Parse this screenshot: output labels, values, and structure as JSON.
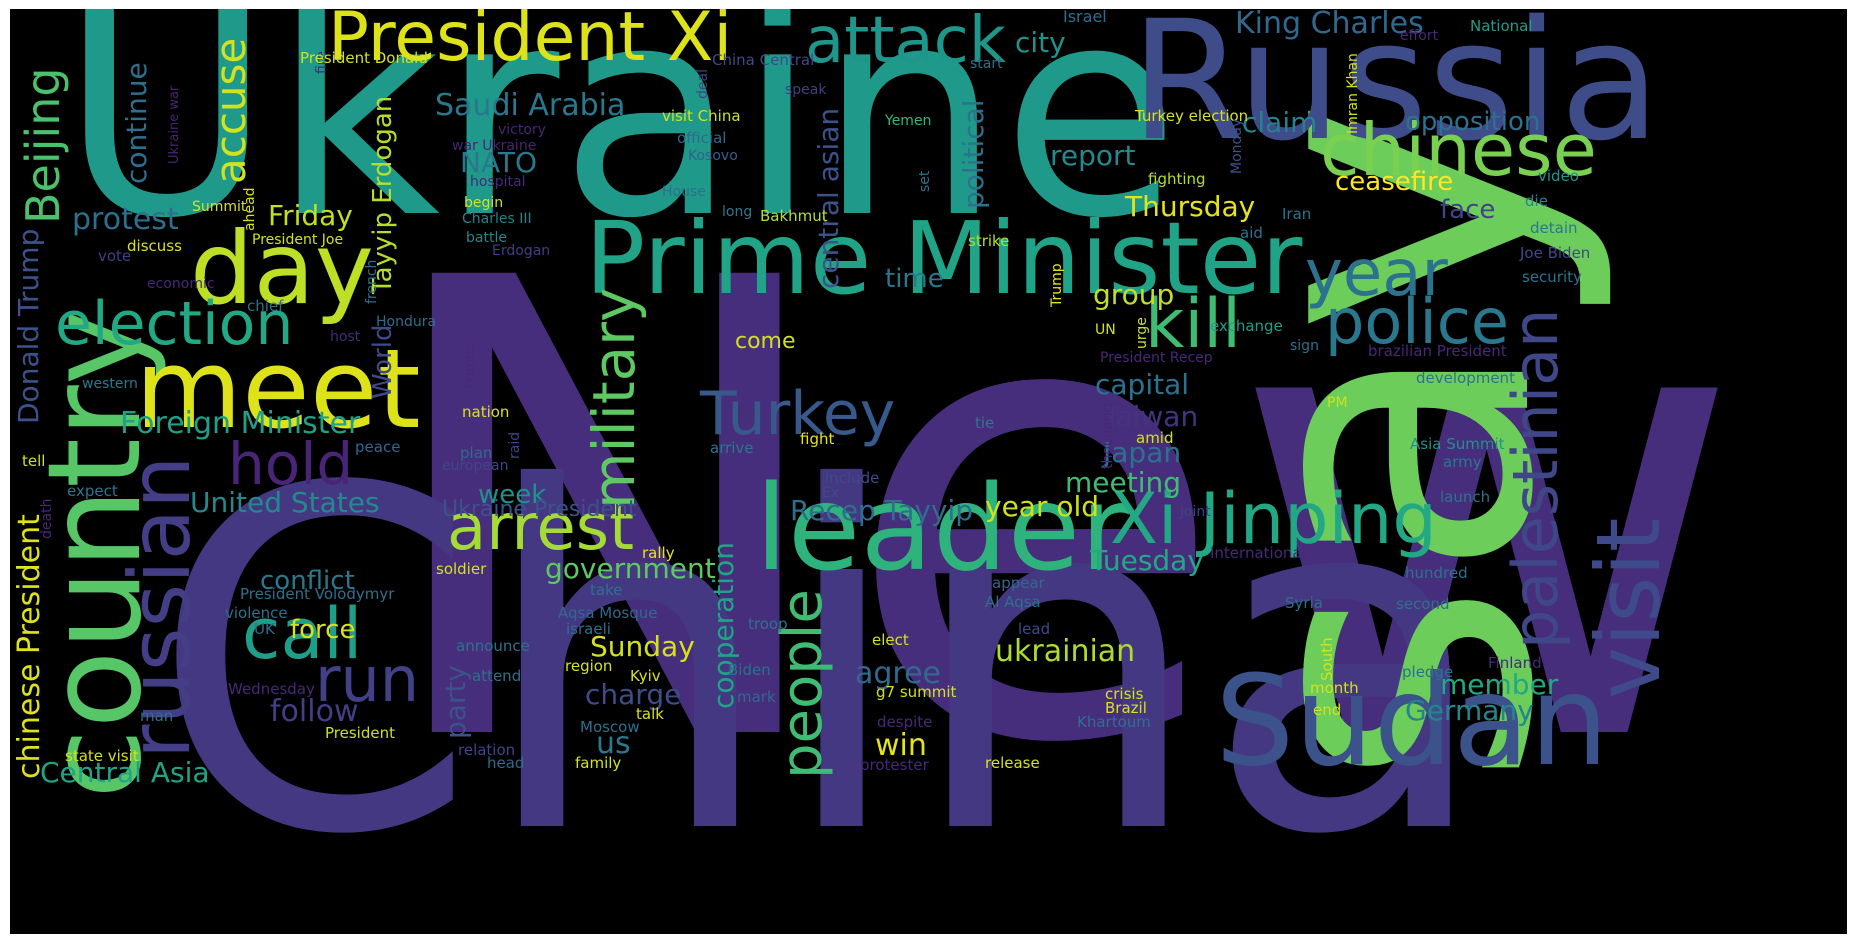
{
  "words": [
    {
      "text": "New",
      "color": "#472e7c"
    },
    {
      "text": "China",
      "color": "#453882"
    },
    {
      "text": "Ukraine",
      "color": "#1f9a8a"
    },
    {
      "text": "say",
      "color": "#6ccd5a"
    },
    {
      "text": "Russia",
      "color": "#3f4c8a"
    },
    {
      "text": "Prime Minister",
      "color": "#20a386"
    },
    {
      "text": "leader",
      "color": "#2eb37c"
    },
    {
      "text": "Sudan",
      "color": "#3b528b"
    },
    {
      "text": "country",
      "color": "#56c667"
    },
    {
      "text": "meet",
      "color": "#dde318"
    },
    {
      "text": "President Xi",
      "color": "#dde318"
    },
    {
      "text": "chinese",
      "color": "#7ad151"
    },
    {
      "text": "visit",
      "color": "#3e4a89"
    },
    {
      "text": "Xi Jinping",
      "color": "#22a884"
    },
    {
      "text": "attack",
      "color": "#1f968b"
    },
    {
      "text": "day",
      "color": "#bddf26"
    },
    {
      "text": "election",
      "color": "#22a884"
    },
    {
      "text": "russian",
      "color": "#433e85"
    },
    {
      "text": "kill",
      "color": "#3fbc73"
    },
    {
      "text": "police",
      "color": "#2a788e"
    },
    {
      "text": "year",
      "color": "#2c728e"
    },
    {
      "text": "palestinian",
      "color": "#3f4788"
    },
    {
      "text": "arrest",
      "color": "#a5db36"
    },
    {
      "text": "call",
      "color": "#1f9e89"
    },
    {
      "text": "hold",
      "color": "#482576"
    },
    {
      "text": "run",
      "color": "#424086"
    },
    {
      "text": "Turkey",
      "color": "#38598c"
    },
    {
      "text": "military",
      "color": "#5ec962"
    },
    {
      "text": "people",
      "color": "#3fbc73"
    },
    {
      "text": "Beijing",
      "color": "#4ac16d"
    },
    {
      "text": "accuse",
      "color": "#d2e21b"
    },
    {
      "text": "King Charles",
      "color": "#31688e"
    },
    {
      "text": "Saudi Arabia",
      "color": "#2a788e"
    },
    {
      "text": "Foreign Minister",
      "color": "#1fa188"
    },
    {
      "text": "Tayyip Erdogan",
      "color": "#b5de2b"
    },
    {
      "text": "protest",
      "color": "#2d708e"
    },
    {
      "text": "Friday",
      "color": "#c2df23"
    },
    {
      "text": "city",
      "color": "#21918c"
    },
    {
      "text": "claim",
      "color": "#26818e"
    },
    {
      "text": "opposition",
      "color": "#2c728e"
    },
    {
      "text": "ceasefire",
      "color": "#fde725"
    },
    {
      "text": "face",
      "color": "#414487"
    },
    {
      "text": "report",
      "color": "#23898e"
    },
    {
      "text": "Thursday",
      "color": "#e5e419"
    },
    {
      "text": "political",
      "color": "#2c728e"
    },
    {
      "text": "central asian",
      "color": "#3b528b"
    },
    {
      "text": "continue",
      "color": "#2e6f8e"
    },
    {
      "text": "NATO",
      "color": "#2a788e"
    },
    {
      "text": "United States",
      "color": "#23898e"
    },
    {
      "text": "Central Asia",
      "color": "#20a386"
    },
    {
      "text": "chinese President",
      "color": "#dde318"
    },
    {
      "text": "Donald Trump",
      "color": "#3b528b"
    },
    {
      "text": "group",
      "color": "#c2df23"
    },
    {
      "text": "time",
      "color": "#2a788e"
    },
    {
      "text": "capital",
      "color": "#2c728e"
    },
    {
      "text": "Taiwan",
      "color": "#46337e"
    },
    {
      "text": "Japan",
      "color": "#2c728e"
    },
    {
      "text": "meeting",
      "color": "#3fbc73"
    },
    {
      "text": "year old",
      "color": "#d0e11c"
    },
    {
      "text": "Recep Tayyip",
      "color": "#2e6e8e"
    },
    {
      "text": "Tuesday",
      "color": "#22a884"
    },
    {
      "text": "member",
      "color": "#22a884"
    },
    {
      "text": "Germany",
      "color": "#25858e"
    },
    {
      "text": "agree",
      "color": "#31688e"
    },
    {
      "text": "ukrainian",
      "color": "#addc30"
    },
    {
      "text": "win",
      "color": "#e5e419"
    },
    {
      "text": "government",
      "color": "#5ec962"
    },
    {
      "text": "Sunday",
      "color": "#d5e21a"
    },
    {
      "text": "charge",
      "color": "#3e4c8a"
    },
    {
      "text": "cooperation",
      "color": "#20a386"
    },
    {
      "text": "party",
      "color": "#3b528b"
    },
    {
      "text": "us",
      "color": "#2a788e"
    },
    {
      "text": "conflict",
      "color": "#2a788e"
    },
    {
      "text": "follow",
      "color": "#433e85"
    },
    {
      "text": "force",
      "color": "#d8e219"
    },
    {
      "text": "World",
      "color": "#3e4a89"
    },
    {
      "text": "week",
      "color": "#21918c"
    },
    {
      "text": "Ukraine President",
      "color": "#3b528b"
    },
    {
      "text": "come",
      "color": "#d0e11c"
    },
    {
      "text": "Israel",
      "color": "#2d708e"
    },
    {
      "text": "National",
      "color": "#1f9e89"
    },
    {
      "text": "effort",
      "color": "#482878"
    },
    {
      "text": "fire",
      "color": "#482878"
    },
    {
      "text": "President Donald",
      "color": "#d2e21b"
    },
    {
      "text": "China Central",
      "color": "#3e4a89"
    },
    {
      "text": "start",
      "color": "#2d708e"
    },
    {
      "text": "speak",
      "color": "#433e85"
    },
    {
      "text": "deal",
      "color": "#414487"
    },
    {
      "text": "visit China",
      "color": "#cae11f"
    },
    {
      "text": "official",
      "color": "#31688e"
    },
    {
      "text": "Kosovo",
      "color": "#355f8d"
    },
    {
      "text": "victory",
      "color": "#482475"
    },
    {
      "text": "war Ukraine",
      "color": "#482475"
    },
    {
      "text": "Ukraine war",
      "color": "#482475"
    },
    {
      "text": "hospital",
      "color": "#482878"
    },
    {
      "text": "Yemen",
      "color": "#35b779"
    },
    {
      "text": "Turkey election",
      "color": "#d8e219"
    },
    {
      "text": "Monday",
      "color": "#3b528b"
    },
    {
      "text": "Imran Khan",
      "color": "#d5e21a"
    },
    {
      "text": "fighting",
      "color": "#b5de2b"
    },
    {
      "text": "video",
      "color": "#1f968b"
    },
    {
      "text": "die",
      "color": "#25848e"
    },
    {
      "text": "detain",
      "color": "#2a788e"
    },
    {
      "text": "Joe Biden",
      "color": "#3e4a89"
    },
    {
      "text": "security",
      "color": "#2c728e"
    },
    {
      "text": "Iran",
      "color": "#2c728e"
    },
    {
      "text": "aid",
      "color": "#2c728e"
    },
    {
      "text": "House",
      "color": "#2d708e"
    },
    {
      "text": "long",
      "color": "#2a788e"
    },
    {
      "text": "begin",
      "color": "#d2e21b"
    },
    {
      "text": "Charles III",
      "color": "#26828e"
    },
    {
      "text": "battle",
      "color": "#25848e"
    },
    {
      "text": "Erdogan",
      "color": "#433e85"
    },
    {
      "text": "Bakhmut",
      "color": "#b5de2b"
    },
    {
      "text": "strike",
      "color": "#b5de2b"
    },
    {
      "text": "set",
      "color": "#2c728e"
    },
    {
      "text": "Summit",
      "color": "#d8e219"
    },
    {
      "text": "ahead",
      "color": "#d8e219"
    },
    {
      "text": "President Joe",
      "color": "#d2e21b"
    },
    {
      "text": "discuss",
      "color": "#d8e219"
    },
    {
      "text": "vote",
      "color": "#433e85"
    },
    {
      "text": "economic",
      "color": "#482878"
    },
    {
      "text": "chief",
      "color": "#2d708e"
    },
    {
      "text": "Hondura",
      "color": "#2d708e"
    },
    {
      "text": "host",
      "color": "#482878"
    },
    {
      "text": "french",
      "color": "#2d708e"
    },
    {
      "text": "Trump",
      "color": "#e5e419"
    },
    {
      "text": "UN",
      "color": "#d2e21b"
    },
    {
      "text": "urge",
      "color": "#cae11f"
    },
    {
      "text": "exchange",
      "color": "#1f9e89"
    },
    {
      "text": "sign",
      "color": "#2d708e"
    },
    {
      "text": "brazilian President",
      "color": "#482878"
    },
    {
      "text": "President Recep",
      "color": "#482878"
    },
    {
      "text": "development",
      "color": "#2c728e"
    },
    {
      "text": "western",
      "color": "#2a788e"
    },
    {
      "text": "France",
      "color": "#482878"
    },
    {
      "text": "nation",
      "color": "#d8e219"
    },
    {
      "text": "PM",
      "color": "#cae11f"
    },
    {
      "text": "thousand",
      "color": "#482878"
    },
    {
      "text": "tie",
      "color": "#2a788e"
    },
    {
      "text": "raid",
      "color": "#414487"
    },
    {
      "text": "fight",
      "color": "#e5e419"
    },
    {
      "text": "Asia Summit",
      "color": "#21918c"
    },
    {
      "text": "peace",
      "color": "#31688e"
    },
    {
      "text": "plan",
      "color": "#31688e"
    },
    {
      "text": "european",
      "color": "#414487"
    },
    {
      "text": "amid",
      "color": "#d2e21b"
    },
    {
      "text": "arrive",
      "color": "#2a788e"
    },
    {
      "text": "army",
      "color": "#2a788e"
    },
    {
      "text": "tell",
      "color": "#d0e11c"
    },
    {
      "text": "include",
      "color": "#3e4a89"
    },
    {
      "text": "Ex",
      "color": "#3e4a89"
    },
    {
      "text": "expect",
      "color": "#2a788e"
    },
    {
      "text": "launch",
      "color": "#2c728e"
    },
    {
      "text": "death",
      "color": "#482878"
    },
    {
      "text": "joint",
      "color": "#414487"
    },
    {
      "text": "International",
      "color": "#482878"
    },
    {
      "text": "hundred",
      "color": "#2c728e"
    },
    {
      "text": "rally",
      "color": "#e5e419"
    },
    {
      "text": "soldier",
      "color": "#d2e21b"
    },
    {
      "text": "appear",
      "color": "#31688e"
    },
    {
      "text": "take",
      "color": "#2c728e"
    },
    {
      "text": "Al Aqsa",
      "color": "#2d708e"
    },
    {
      "text": "second",
      "color": "#2d708e"
    },
    {
      "text": "President Volodymyr",
      "color": "#2d708e"
    },
    {
      "text": "Syria",
      "color": "#2d708e"
    },
    {
      "text": "violence",
      "color": "#2d708e"
    },
    {
      "text": "Aqsa Mosque",
      "color": "#31688e"
    },
    {
      "text": "UK",
      "color": "#2d708e"
    },
    {
      "text": "israeli",
      "color": "#2d708e"
    },
    {
      "text": "troop",
      "color": "#2c728e"
    },
    {
      "text": "lead",
      "color": "#3e4a89"
    },
    {
      "text": "announce",
      "color": "#2d708e"
    },
    {
      "text": "region",
      "color": "#d5e21a"
    },
    {
      "text": "elect",
      "color": "#d2e21b"
    },
    {
      "text": "South",
      "color": "#d2e21b"
    },
    {
      "text": "attend",
      "color": "#2d708e"
    },
    {
      "text": "Biden",
      "color": "#2d708e"
    },
    {
      "text": "Kyiv",
      "color": "#d8e219"
    },
    {
      "text": "pledge",
      "color": "#2d708e"
    },
    {
      "text": "Finland",
      "color": "#482878"
    },
    {
      "text": "Wednesday",
      "color": "#482878"
    },
    {
      "text": "month",
      "color": "#d2e21b"
    },
    {
      "text": "g7 summit",
      "color": "#d2e21b"
    },
    {
      "text": "crisis",
      "color": "#d2e21b"
    },
    {
      "text": "mark",
      "color": "#31688e"
    },
    {
      "text": "talk",
      "color": "#d8e219"
    },
    {
      "text": "Brazil",
      "color": "#d8e219"
    },
    {
      "text": "man",
      "color": "#2d708e"
    },
    {
      "text": "despite",
      "color": "#482878"
    },
    {
      "text": "end",
      "color": "#d2e21b"
    },
    {
      "text": "Moscow",
      "color": "#2d708e"
    },
    {
      "text": "Khartoum",
      "color": "#2d708e"
    },
    {
      "text": "President",
      "color": "#cae11f"
    },
    {
      "text": "relation",
      "color": "#414487"
    },
    {
      "text": "state visit",
      "color": "#d2e21b"
    },
    {
      "text": "head",
      "color": "#31688e"
    },
    {
      "text": "family",
      "color": "#d2e21b"
    },
    {
      "text": "protester",
      "color": "#482878"
    },
    {
      "text": "release",
      "color": "#d8e219"
    }
  ]
}
